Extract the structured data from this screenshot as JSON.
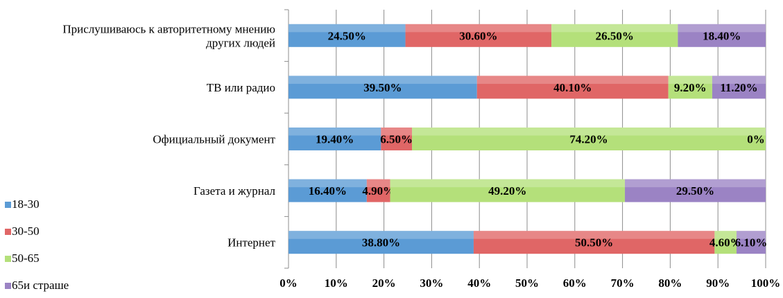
{
  "chart_data": {
    "type": "bar",
    "orientation": "horizontal",
    "stacked": "percent",
    "categories": [
      "Прислушиваюсь к авторитетному мнению других людей",
      "ТВ или радио",
      "Официальный документ",
      "Газета и журнал",
      "Интернет"
    ],
    "category_label_lines": [
      [
        "Прислушиваюсь к авторитетному мнению",
        "других людей"
      ],
      [
        "ТВ или радио"
      ],
      [
        "Официальный документ"
      ],
      [
        "Газета и журнал"
      ],
      [
        "Интернет"
      ]
    ],
    "series": [
      {
        "name": "18-30",
        "color": "#5b9bd5",
        "values": [
          24.5,
          39.5,
          19.4,
          16.4,
          38.8
        ],
        "labels": [
          "24.50%",
          "39.50%",
          "19.40%",
          "16.40%",
          "38.80%"
        ]
      },
      {
        "name": "30-50",
        "color": "#e06666",
        "values": [
          30.6,
          40.1,
          6.5,
          4.9,
          50.5
        ],
        "labels": [
          "30.60%",
          "40.10%",
          "6.50%",
          "4.90%",
          "50.50%"
        ]
      },
      {
        "name": "50-65",
        "color": "#b4e07a",
        "values": [
          26.5,
          9.2,
          74.2,
          49.2,
          4.6
        ],
        "labels": [
          "26.50%",
          "9.20%",
          "74.20%",
          "49.20%",
          "4.60%"
        ]
      },
      {
        "name": "65и страше",
        "color": "#9b83c4",
        "values": [
          18.4,
          11.2,
          0,
          29.5,
          6.1
        ],
        "labels": [
          "18.40%",
          "11.20%",
          "0%",
          "29.50%",
          "6.10%"
        ]
      }
    ],
    "x_ticks": [
      "0%",
      "10%",
      "20%",
      "30%",
      "40%",
      "50%",
      "60%",
      "70%",
      "80%",
      "90%",
      "100%"
    ],
    "xlim": [
      0,
      100
    ],
    "grid": true,
    "legend_position": "left-bottom"
  }
}
